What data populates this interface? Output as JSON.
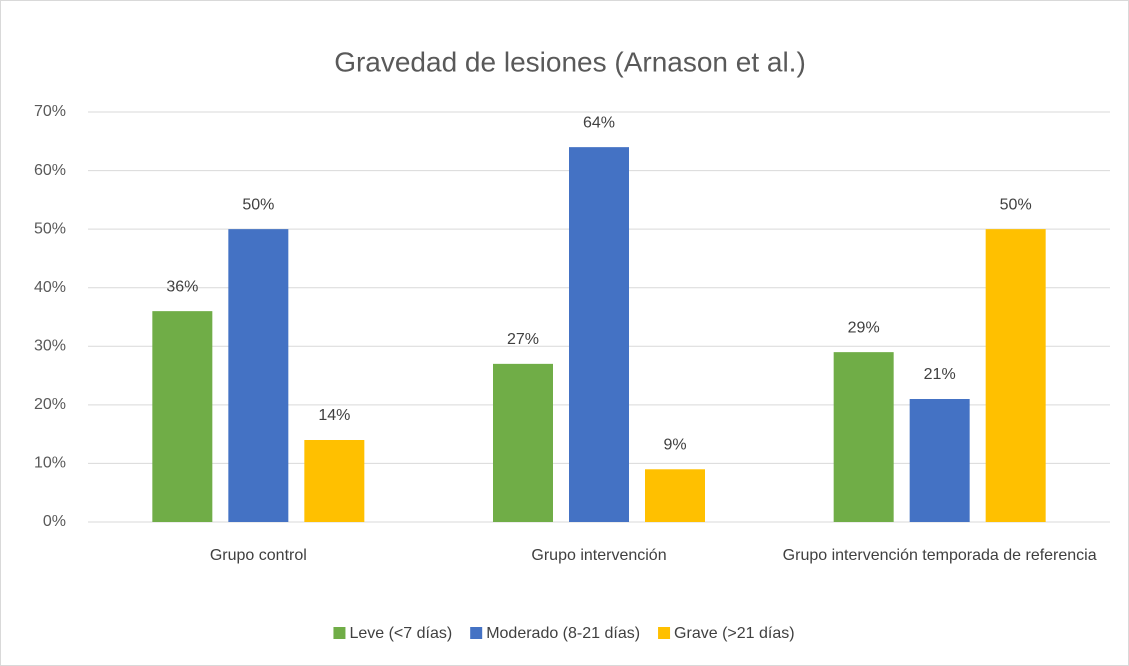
{
  "chart_data": {
    "type": "bar",
    "title": "Gravedad de lesiones (Arnason et al.)",
    "categories": [
      "Grupo control",
      "Grupo intervención",
      "Grupo intervención temporada de referencia"
    ],
    "series": [
      {
        "name": "Leve (<7 días)",
        "color": "#70ad47",
        "values": [
          36,
          27,
          29
        ],
        "value_labels": [
          "36%",
          "27%",
          "29%"
        ]
      },
      {
        "name": "Moderado (8-21 días)",
        "color": "#4472c4",
        "values": [
          50,
          64,
          21
        ],
        "value_labels": [
          "50%",
          "64%",
          "21%"
        ]
      },
      {
        "name": "Grave (>21 días)",
        "color": "#ffc000",
        "values": [
          14,
          9,
          50
        ],
        "value_labels": [
          "14%",
          "9%",
          "50%"
        ]
      }
    ],
    "ylim": [
      0,
      70
    ],
    "yticks": [
      {
        "value": 0,
        "label": "0%"
      },
      {
        "value": 10,
        "label": "10%"
      },
      {
        "value": 20,
        "label": "20%"
      },
      {
        "value": 30,
        "label": "30%"
      },
      {
        "value": 40,
        "label": "40%"
      },
      {
        "value": 50,
        "label": "50%"
      },
      {
        "value": 60,
        "label": "60%"
      },
      {
        "value": 70,
        "label": "70%"
      }
    ],
    "grid": true,
    "legend": "bottom"
  }
}
